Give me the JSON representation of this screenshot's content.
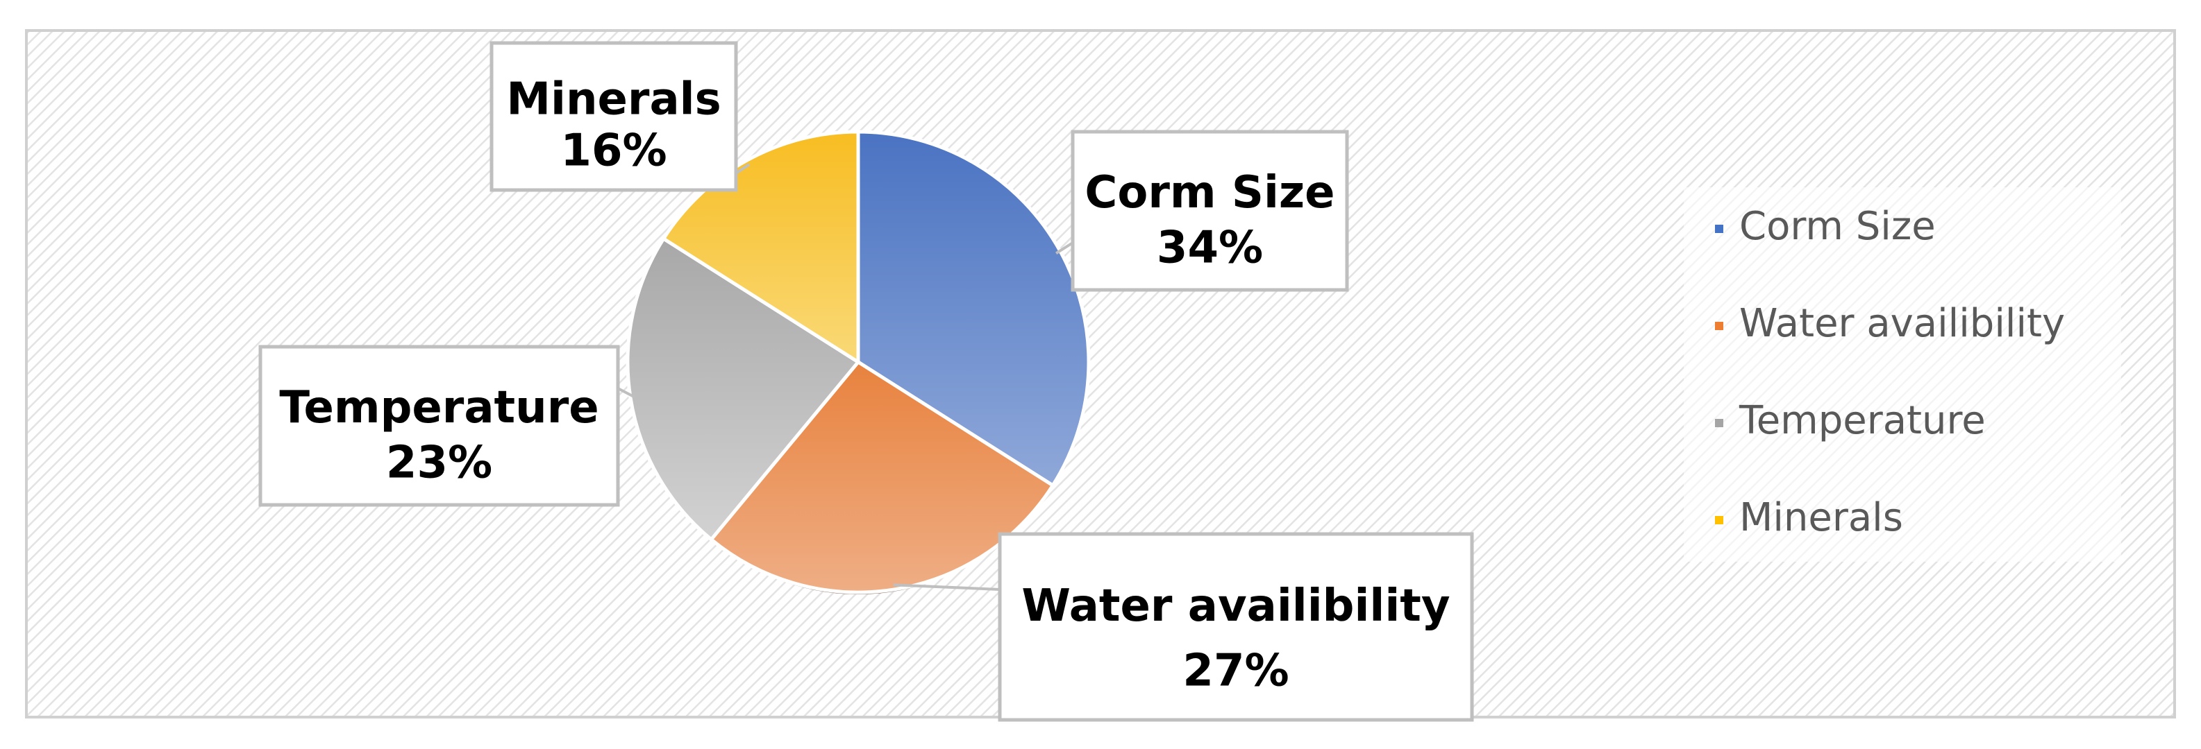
{
  "chart_data": {
    "type": "pie",
    "title": "",
    "slices": [
      {
        "label": "Corm Size",
        "value": 34,
        "percent_label": "34%",
        "color": "#4472C4"
      },
      {
        "label": "Water availibility",
        "value": 27,
        "percent_label": "27%",
        "color": "#ED7D31"
      },
      {
        "label": "Temperature",
        "value": 23,
        "percent_label": "23%",
        "color": "#A5A5A5"
      },
      {
        "label": "Minerals",
        "value": 16,
        "percent_label": "16%",
        "color": "#FFC000"
      }
    ],
    "legend": {
      "placement": "right",
      "entries": [
        "Corm Size",
        "Water availibility",
        "Temperature",
        "Minerals"
      ]
    },
    "data_labels": "callouts with category name and percentage",
    "start_angle": "12 o'clock, clockwise"
  }
}
